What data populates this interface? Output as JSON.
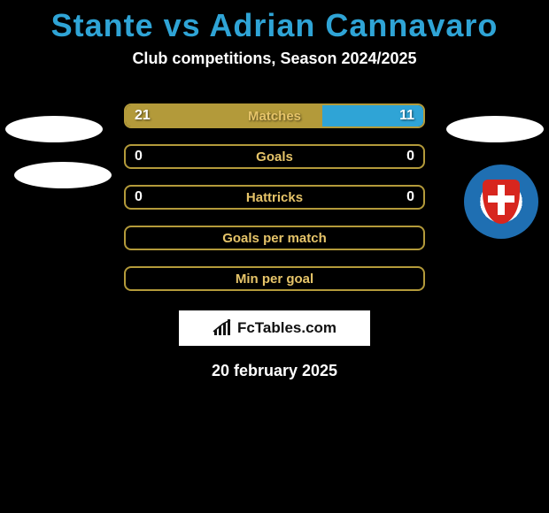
{
  "title": "Stante vs Adrian Cannavaro",
  "title_color": "#2fa4d6",
  "subtitle": "Club competitions, Season 2024/2025",
  "subtitle_color": "#ffffff",
  "left_accent": "#b39a3a",
  "right_accent": "#2fa4d6",
  "row_border_color": "#b39a3a",
  "rows": [
    {
      "label": "Matches",
      "left": "21",
      "right": "11",
      "left_fill_pct": 66,
      "right_fill_pct": 34,
      "show_fill": true
    },
    {
      "label": "Goals",
      "left": "0",
      "right": "0",
      "left_fill_pct": 0,
      "right_fill_pct": 0,
      "show_fill": false
    },
    {
      "label": "Hattricks",
      "left": "0",
      "right": "0",
      "left_fill_pct": 0,
      "right_fill_pct": 0,
      "show_fill": false
    },
    {
      "label": "Goals per match",
      "left": "",
      "right": "",
      "left_fill_pct": 0,
      "right_fill_pct": 0,
      "show_fill": false
    },
    {
      "label": "Min per goal",
      "left": "",
      "right": "",
      "left_fill_pct": 0,
      "right_fill_pct": 0,
      "show_fill": false
    }
  ],
  "brand_text": "FcTables.com",
  "date_text": "20 february 2025",
  "label_color": "#e6c469"
}
